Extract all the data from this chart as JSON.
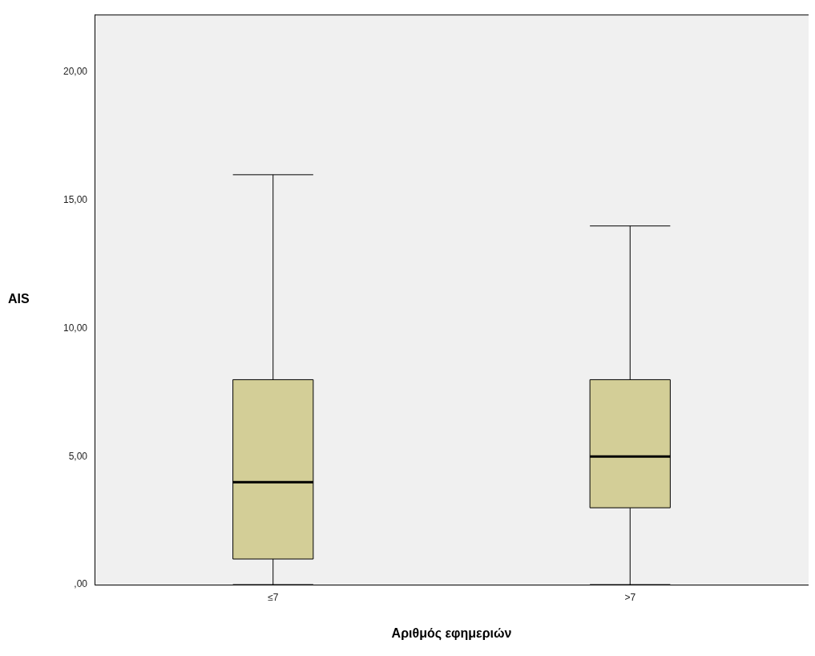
{
  "chart_data": {
    "type": "box",
    "xlabel": "Αριθμός εφημεριών",
    "ylabel": "AIS",
    "categories": [
      "≤7",
      ">7"
    ],
    "boxes": [
      {
        "low": 0,
        "q1": 1,
        "median": 4,
        "q3": 8,
        "high": 16
      },
      {
        "low": 0,
        "q1": 3,
        "median": 5,
        "q3": 8,
        "high": 14
      }
    ],
    "color": "#d3ce97",
    "ylim": [
      0,
      22.25
    ],
    "yticks": [
      {
        "value": 0,
        "label": ",00"
      },
      {
        "value": 5,
        "label": "5,00"
      },
      {
        "value": 10,
        "label": "10,00"
      },
      {
        "value": 15,
        "label": "15,00"
      },
      {
        "value": 20,
        "label": "20,00"
      }
    ]
  }
}
